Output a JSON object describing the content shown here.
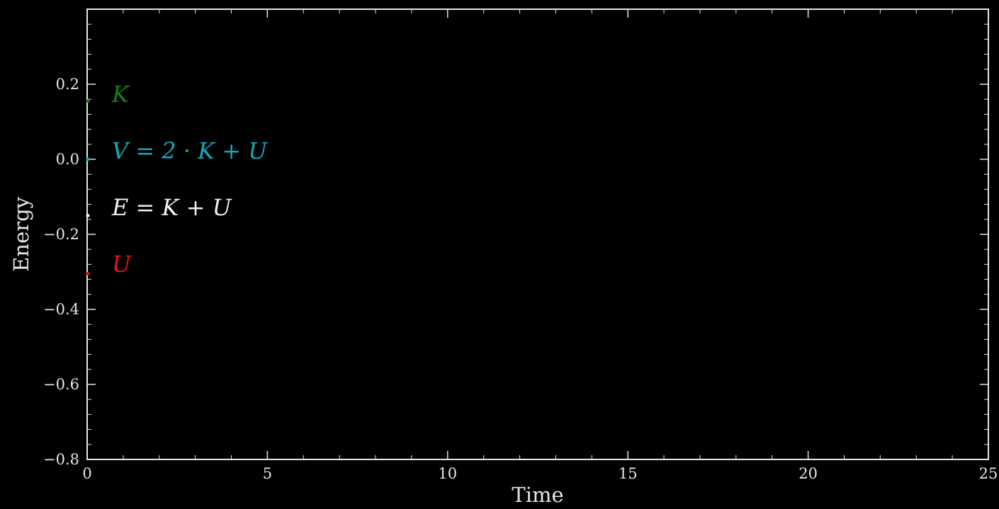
{
  "chart_data": {
    "type": "line",
    "title": "",
    "xlabel": "Time",
    "ylabel": "Energy",
    "xlim": [
      0,
      25
    ],
    "ylim": [
      -0.8,
      0.4
    ],
    "xticks": [
      0,
      5,
      10,
      15,
      20,
      25
    ],
    "xtick_labels": [
      "0",
      "5",
      "10",
      "15",
      "20",
      "25"
    ],
    "yticks": [
      -0.8,
      -0.6,
      -0.4,
      -0.2,
      0.0,
      0.2
    ],
    "ytick_labels": [
      "−0.8",
      "−0.6",
      "−0.4",
      "−0.2",
      "0.0",
      "0.2"
    ],
    "x_minor_step": 1,
    "y_minor_step": 0.04,
    "grid": false,
    "legend_placement": "upper-left",
    "background_color": "#000000",
    "axes_color": "#e6e6e6",
    "series": [
      {
        "name": "K",
        "color": "#1a7f1a",
        "x": [
          0
        ],
        "y": [
          0.155
        ]
      },
      {
        "name": "V = 2 · K + U",
        "color": "#17a8b8",
        "x": [
          0
        ],
        "y": [
          0.0
        ]
      },
      {
        "name": "E = K + U",
        "color": "#f2f2f2",
        "x": [
          0
        ],
        "y": [
          -0.15
        ]
      },
      {
        "name": "U",
        "color": "#e8141e",
        "x": [
          0
        ],
        "y": [
          -0.305
        ]
      }
    ]
  }
}
